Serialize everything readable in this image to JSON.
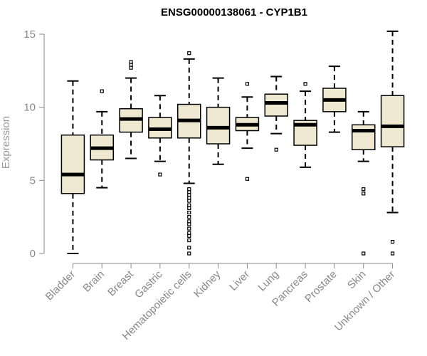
{
  "chart_data": {
    "type": "boxplot",
    "title": "ENSG00000138061 - CYP1B1",
    "ylabel": "Expression",
    "xlabel": "",
    "ylim": [
      0,
      15.4
    ],
    "yticks": [
      0,
      5,
      10,
      15
    ],
    "grid": false,
    "box_fill": "#f0e9d2",
    "box_stroke": "#000000",
    "axis_color": "#888888",
    "categories": [
      "Bladder",
      "Brain",
      "Breast",
      "Gastric",
      "Hematopoietic cells",
      "Kidney",
      "Liver",
      "Lung",
      "Pancreas",
      "Prostate",
      "Skin",
      "Unknown / Other"
    ],
    "boxes": [
      {
        "category": "Bladder",
        "whisker_low": 0.0,
        "q1": 4.1,
        "median": 5.4,
        "q3": 8.1,
        "whisker_high": 11.8,
        "outliers": []
      },
      {
        "category": "Brain",
        "whisker_low": 4.5,
        "q1": 6.4,
        "median": 7.2,
        "q3": 8.1,
        "whisker_high": 9.7,
        "outliers": [
          11.1
        ]
      },
      {
        "category": "Breast",
        "whisker_low": 6.5,
        "q1": 8.3,
        "median": 9.2,
        "q3": 9.9,
        "whisker_high": 12.0,
        "outliers": [
          12.7,
          12.9,
          13.1
        ]
      },
      {
        "category": "Gastric",
        "whisker_low": 6.3,
        "q1": 7.9,
        "median": 8.5,
        "q3": 9.3,
        "whisker_high": 10.8,
        "outliers": [
          5.4
        ]
      },
      {
        "category": "Hematopoietic cells",
        "whisker_low": 4.8,
        "q1": 7.9,
        "median": 9.1,
        "q3": 10.2,
        "whisker_high": 13.3,
        "outliers": [
          0.0,
          0.4,
          0.9,
          1.2,
          1.4,
          1.7,
          2.0,
          2.2,
          2.5,
          2.8,
          3.1,
          3.3,
          3.6,
          3.8,
          4.0,
          4.2,
          4.4,
          13.7
        ]
      },
      {
        "category": "Kidney",
        "whisker_low": 6.1,
        "q1": 7.5,
        "median": 8.6,
        "q3": 10.0,
        "whisker_high": 12.0,
        "outliers": []
      },
      {
        "category": "Liver",
        "whisker_low": 7.2,
        "q1": 8.4,
        "median": 8.8,
        "q3": 9.3,
        "whisker_high": 10.7,
        "outliers": [
          5.1,
          11.6
        ]
      },
      {
        "category": "Lung",
        "whisker_low": 8.2,
        "q1": 9.4,
        "median": 10.3,
        "q3": 10.9,
        "whisker_high": 12.1,
        "outliers": [
          7.1
        ]
      },
      {
        "category": "Pancreas",
        "whisker_low": 5.9,
        "q1": 7.4,
        "median": 8.8,
        "q3": 9.1,
        "whisker_high": 11.1,
        "outliers": [
          11.6
        ]
      },
      {
        "category": "Prostate",
        "whisker_low": 8.3,
        "q1": 9.7,
        "median": 10.5,
        "q3": 11.3,
        "whisker_high": 12.8,
        "outliers": []
      },
      {
        "category": "Skin",
        "whisker_low": 6.3,
        "q1": 7.1,
        "median": 8.4,
        "q3": 8.8,
        "whisker_high": 9.7,
        "outliers": [
          0.0,
          4.1,
          4.4
        ]
      },
      {
        "category": "Unknown / Other",
        "whisker_low": 2.8,
        "q1": 7.3,
        "median": 8.7,
        "q3": 10.8,
        "whisker_high": 15.2,
        "outliers": [
          0.0,
          0.8
        ]
      }
    ]
  }
}
